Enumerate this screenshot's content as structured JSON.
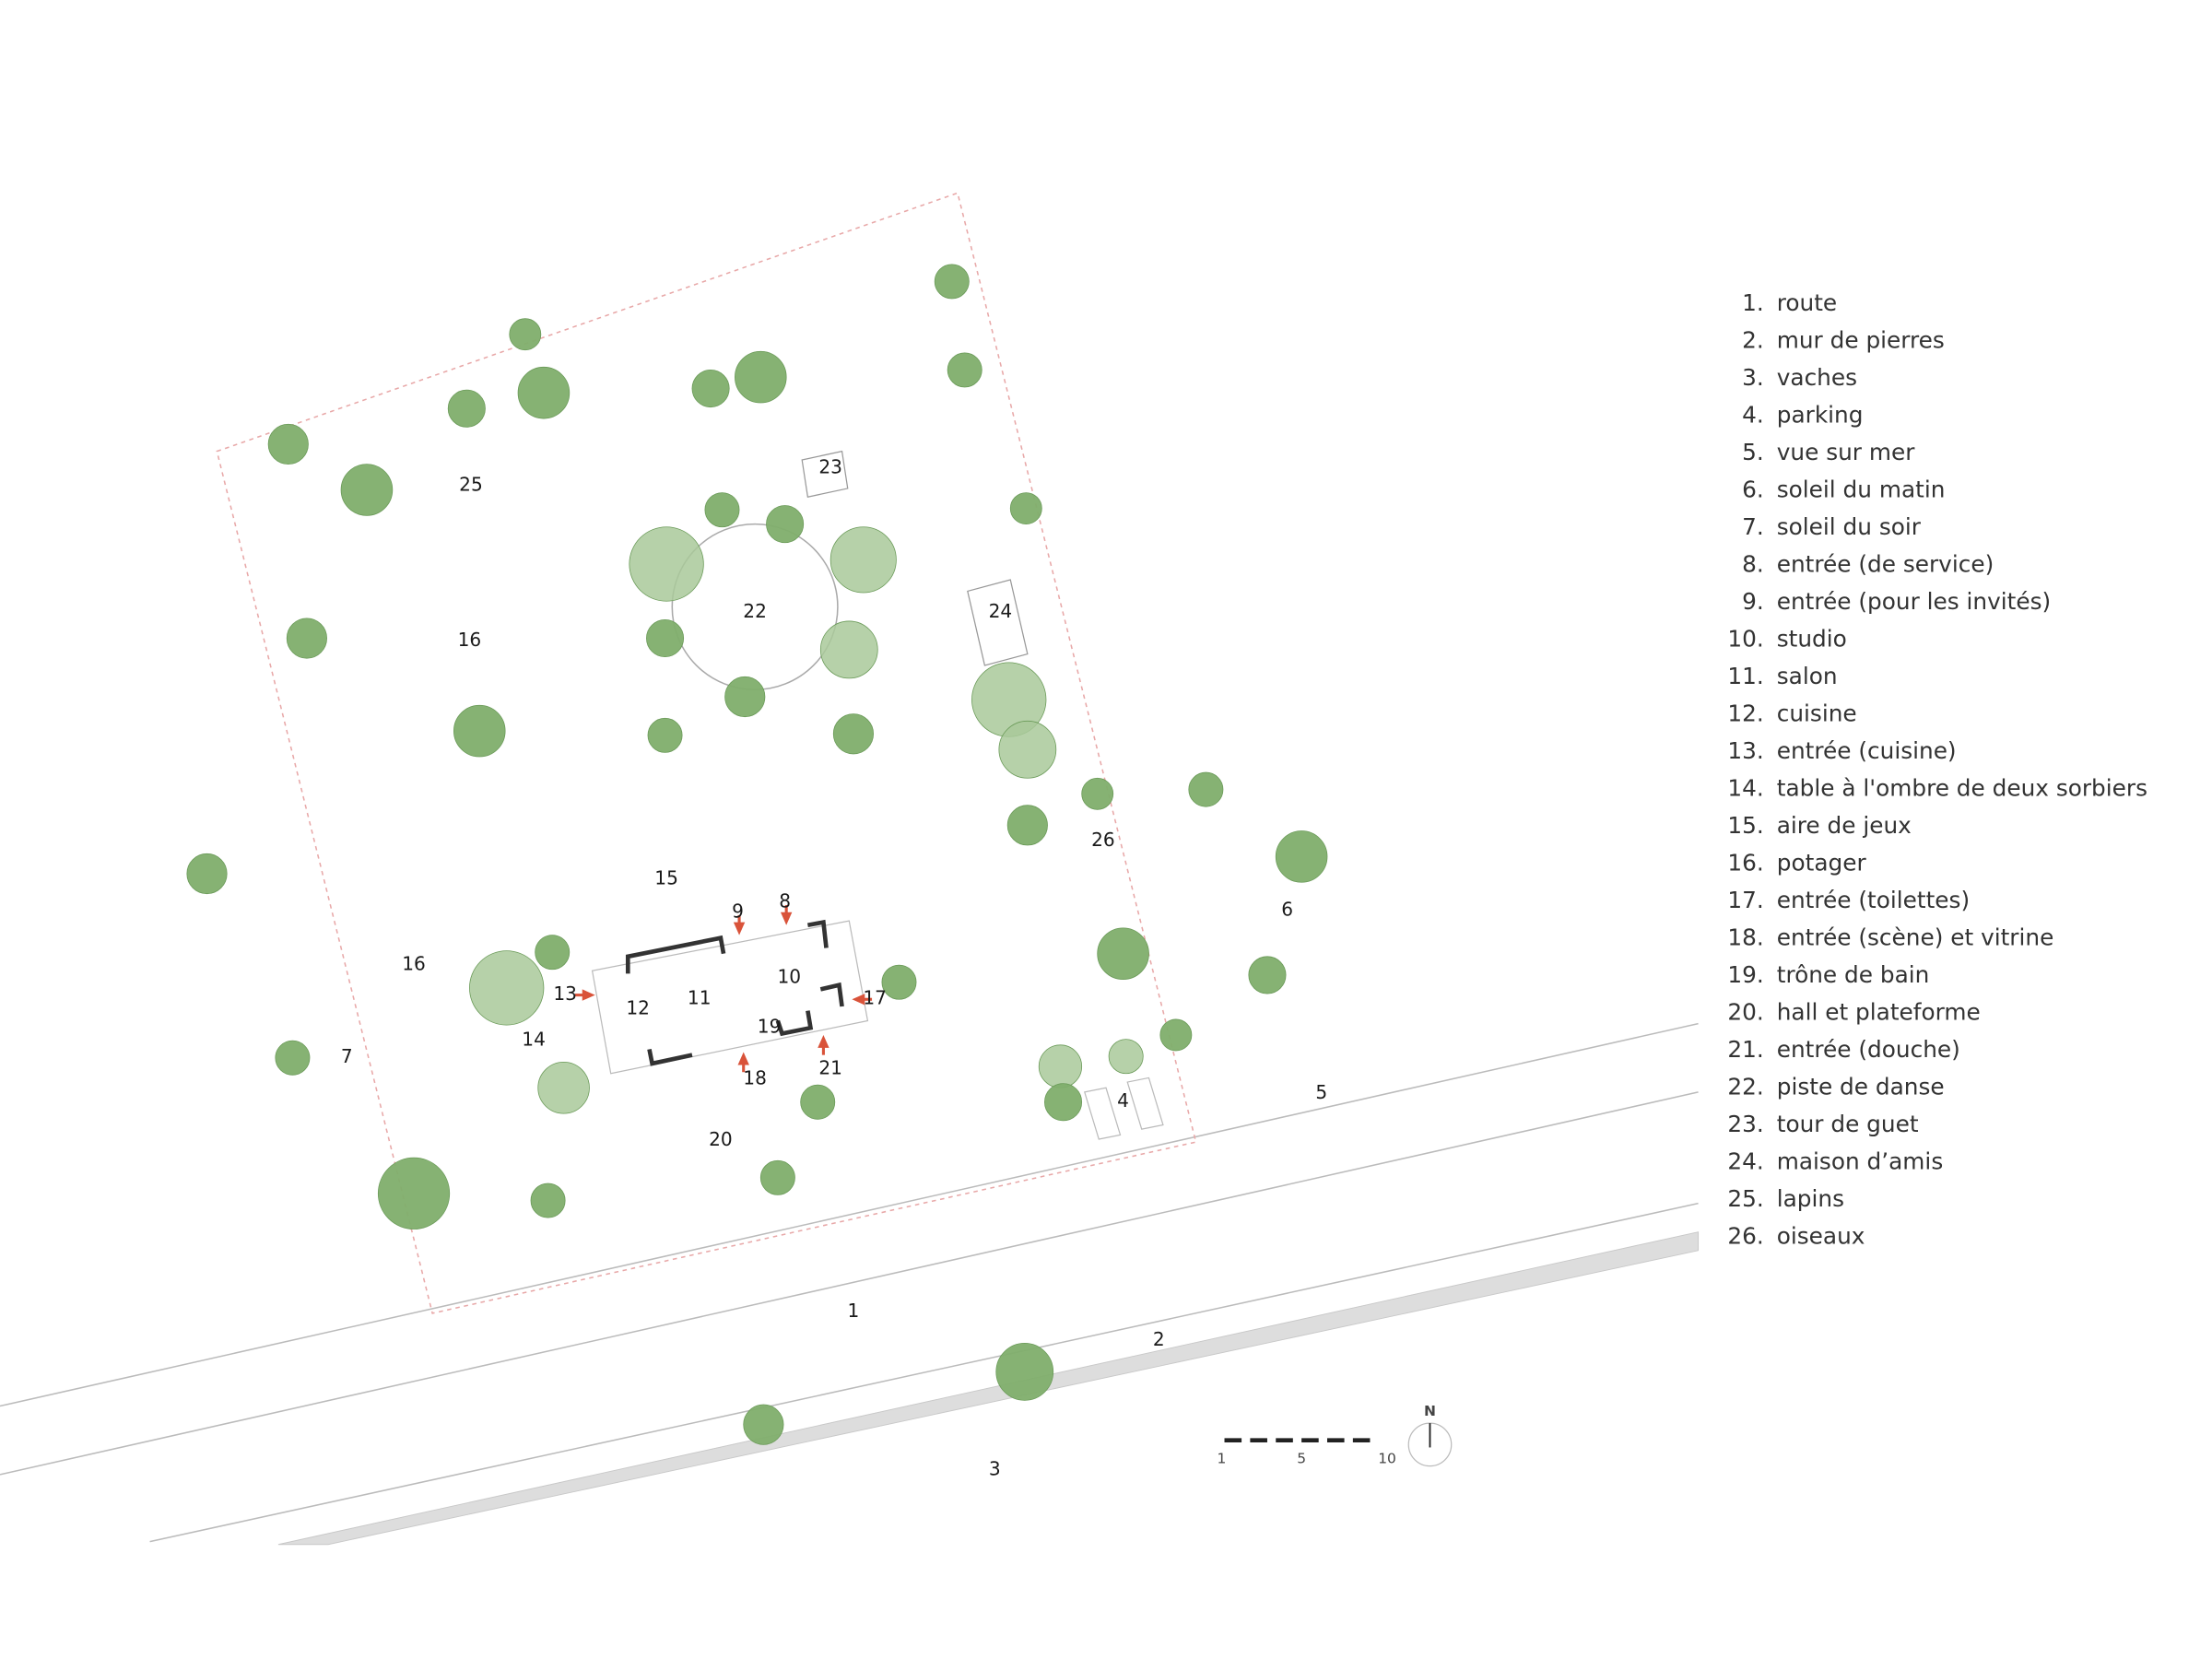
{
  "plan": {
    "labels": [
      "25",
      "23",
      "22",
      "24",
      "16",
      "15",
      "9",
      "8",
      "10",
      "16",
      "13",
      "12",
      "11",
      "17",
      "19",
      "14",
      "7",
      "21",
      "18",
      "4",
      "5",
      "6",
      "26",
      "20",
      "1",
      "2",
      "3"
    ]
  },
  "legend": [
    {
      "number": "1.",
      "text": "route"
    },
    {
      "number": "2.",
      "text": "mur de pierres"
    },
    {
      "number": "3.",
      "text": "vaches"
    },
    {
      "number": "4.",
      "text": "parking"
    },
    {
      "number": "5.",
      "text": "vue sur mer"
    },
    {
      "number": "6.",
      "text": "soleil du matin"
    },
    {
      "number": "7.",
      "text": "soleil du soir"
    },
    {
      "number": "8.",
      "text": "entrée (de service)"
    },
    {
      "number": "9.",
      "text": "entrée (pour les invités)"
    },
    {
      "number": "10.",
      "text": "studio"
    },
    {
      "number": "11.",
      "text": "salon"
    },
    {
      "number": "12.",
      "text": "cuisine"
    },
    {
      "number": "13.",
      "text": "entrée (cuisine)"
    },
    {
      "number": "14.",
      "text": "table à l'ombre de deux sorbiers"
    },
    {
      "number": "15.",
      "text": "aire de jeux"
    },
    {
      "number": "16.",
      "text": "potager"
    },
    {
      "number": "17.",
      "text": "entrée (toilettes)"
    },
    {
      "number": "18.",
      "text": "entrée (scène) et vitrine"
    },
    {
      "number": "19.",
      "text": "trône de bain"
    },
    {
      "number": "20.",
      "text": "hall et plateforme"
    },
    {
      "number": "21.",
      "text": "entrée (douche)"
    },
    {
      "number": "22.",
      "text": "piste de danse"
    },
    {
      "number": "23.",
      "text": "tour de guet"
    },
    {
      "number": "24.",
      "text": "maison d’amis"
    },
    {
      "number": "25.",
      "text": "lapins"
    },
    {
      "number": "26.",
      "text": "oiseaux"
    }
  ],
  "scale_bar": {
    "labels": [
      "1",
      "5",
      "10"
    ],
    "north": "N"
  }
}
